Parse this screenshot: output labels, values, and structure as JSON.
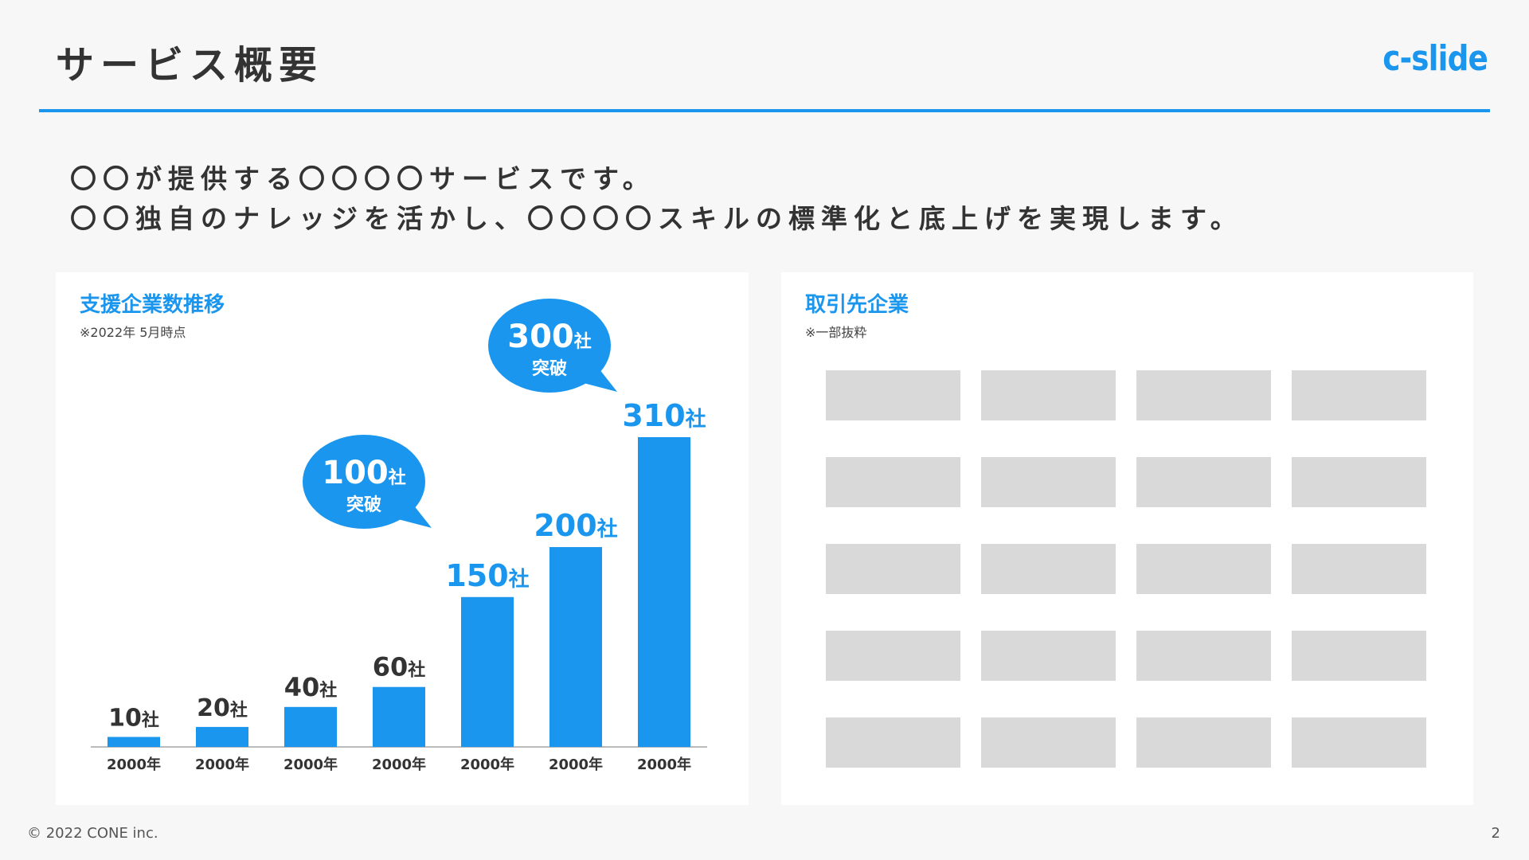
{
  "header": {
    "title": "サービス概要",
    "logo": "c-slide",
    "accent_color": "#1b96ee"
  },
  "lead": {
    "line1": "〇〇が提供する〇〇〇〇サービスです。",
    "line2": "〇〇独自のナレッジを活かし、〇〇〇〇スキルの標準化と底上げを実現します。"
  },
  "left_card": {
    "title": "支援企業数推移",
    "note": "※2022年 5月時点"
  },
  "chart_data": {
    "type": "bar",
    "categories": [
      "2000年",
      "2000年",
      "2000年",
      "2000年",
      "2000年",
      "2000年",
      "2000年"
    ],
    "values": [
      10,
      20,
      40,
      60,
      150,
      200,
      310
    ],
    "unit": "社",
    "bar_color": "#1b96ee",
    "ylim": [
      0,
      310
    ],
    "grid": false,
    "annotations": [
      {
        "value": "100",
        "unit": "社",
        "text": "突破",
        "near_category_index": 3
      },
      {
        "value": "300",
        "unit": "社",
        "text": "突破",
        "near_category_index": 5
      }
    ]
  },
  "right_card": {
    "title": "取引先企業",
    "note": "※一部抜粋",
    "logo_placeholders": 20
  },
  "footer": {
    "copyright": "© 2022 CONE inc.",
    "page_number": "2"
  }
}
